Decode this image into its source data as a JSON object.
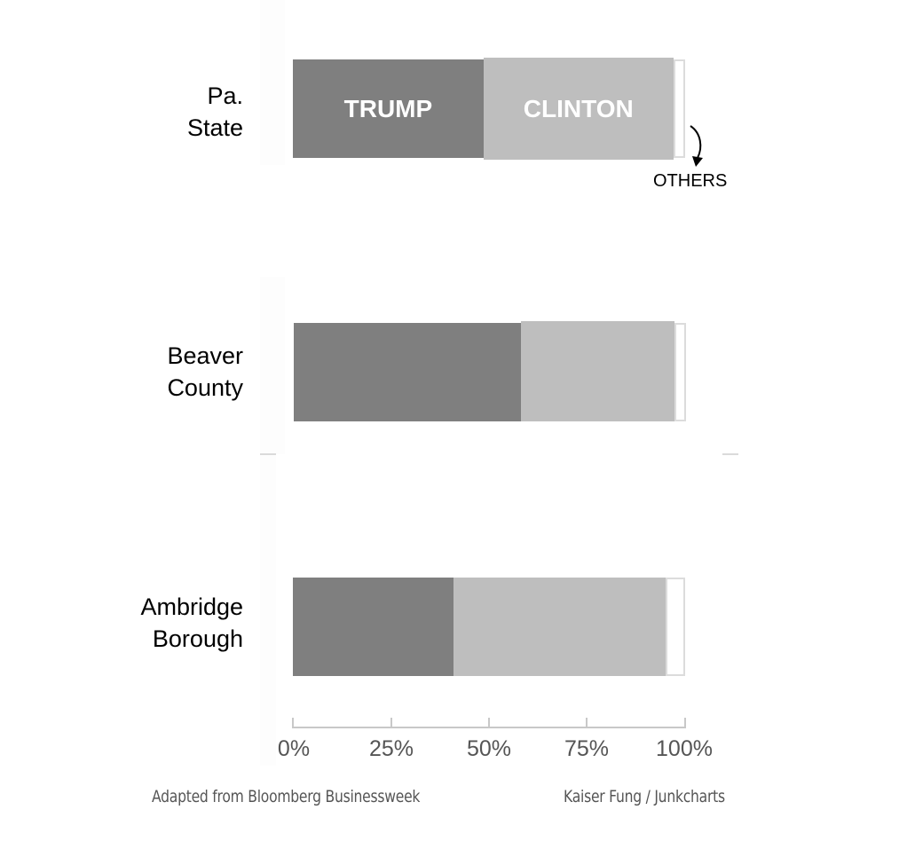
{
  "chart_data": {
    "type": "bar",
    "orientation": "horizontal",
    "stacked": true,
    "normalized": true,
    "categories": [
      "Pa. State",
      "Beaver County",
      "Ambridge Borough"
    ],
    "series": [
      {
        "name": "TRUMP",
        "color": "#7f7f7f",
        "values": [
          48.6,
          58,
          41
        ]
      },
      {
        "name": "CLINTON",
        "color": "#bebebe",
        "values": [
          48.4,
          39,
          54
        ]
      },
      {
        "name": "OTHERS",
        "color": "#ffffff",
        "values": [
          3,
          3,
          5
        ]
      }
    ],
    "xticks": [
      "0%",
      "25%",
      "50%",
      "75%",
      "100%"
    ],
    "xlim": [
      0,
      100
    ],
    "title": "",
    "xlabel": "",
    "ylabel": "",
    "grid": false,
    "annotations": [
      "OTHERS"
    ],
    "legend": "inline labels on first bar"
  },
  "rows": [
    {
      "label_line1": "Pa.",
      "label_line2": "State",
      "trump": 48.6,
      "clinton": 48.4,
      "others": 3.0
    },
    {
      "label_line1": "Beaver",
      "label_line2": "County",
      "trump": 58.0,
      "clinton": 39.0,
      "others": 3.0
    },
    {
      "label_line1": "Ambridge",
      "label_line2": "Borough",
      "trump": 41.0,
      "clinton": 54.0,
      "others": 5.0
    }
  ],
  "segment_labels": {
    "trump": "TRUMP",
    "clinton": "CLINTON",
    "others": "OTHERS"
  },
  "axis": {
    "ticks": [
      "0%",
      "25%",
      "50%",
      "75%",
      "100%"
    ]
  },
  "footer": {
    "source": "Adapted from Bloomberg Businessweek",
    "credit": "Kaiser Fung / Junkcharts"
  },
  "colors": {
    "trump": "#7f7f7f",
    "clinton": "#bebebe",
    "others_border": "#dcdcdc",
    "axis": "#c8c8c8"
  }
}
